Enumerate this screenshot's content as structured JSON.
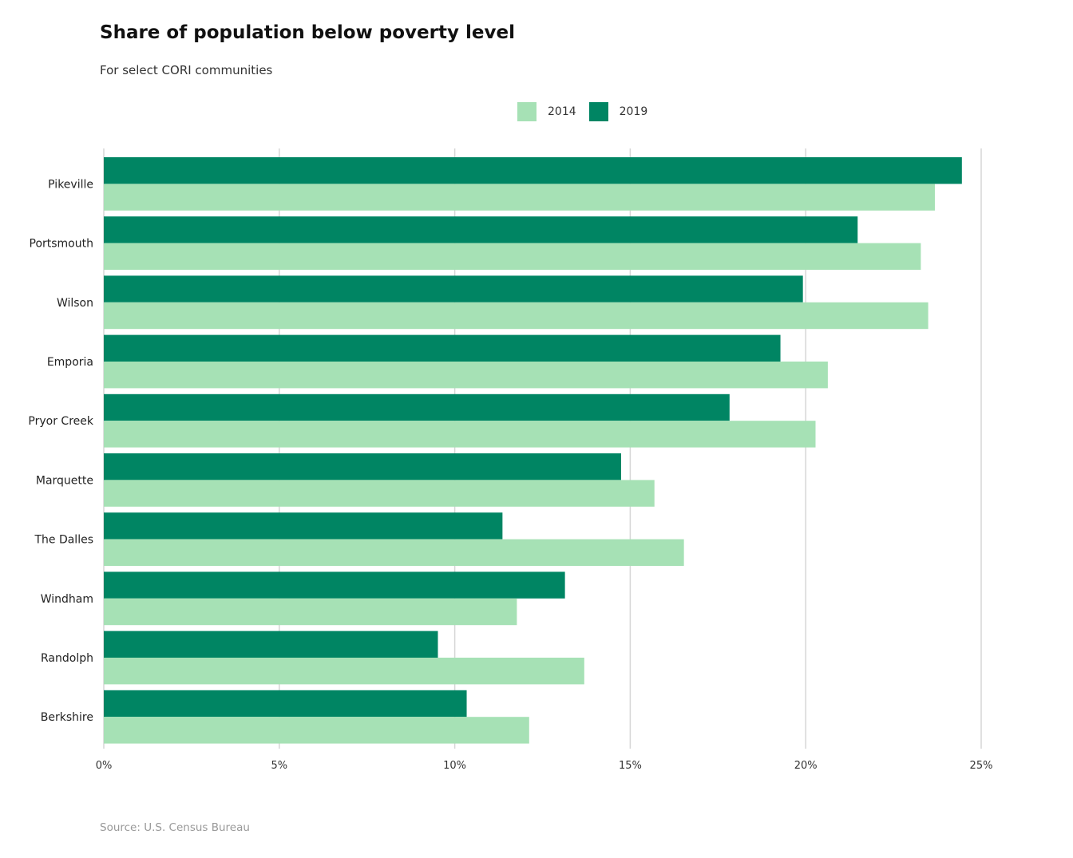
{
  "chart_data": {
    "type": "bar",
    "orientation": "horizontal",
    "title": "Share of population below poverty level",
    "subtitle": "For select CORI communities",
    "source": "Source: U.S. Census Bureau",
    "categories": [
      "Pikeville",
      "Portsmouth",
      "Wilson",
      "Emporia",
      "Pryor Creek",
      "Marquette",
      "The Dalles",
      "Windham",
      "Randolph",
      "Berkshire"
    ],
    "series": [
      {
        "name": "2019",
        "color": "#008563",
        "values": [
          24.45,
          21.48,
          19.92,
          19.28,
          17.83,
          14.74,
          11.36,
          13.14,
          9.52,
          10.34
        ]
      },
      {
        "name": "2014",
        "color": "#a6e1b5",
        "values": [
          23.68,
          23.28,
          23.49,
          20.63,
          20.28,
          15.69,
          16.53,
          11.77,
          13.69,
          12.12
        ]
      }
    ],
    "xlim": [
      0,
      25
    ],
    "x_ticks": [
      "0%",
      "5%",
      "10%",
      "15%",
      "20%",
      "25%"
    ],
    "grid": "vertical",
    "legend": [
      {
        "label": "2014",
        "color": "#a6e1b5"
      },
      {
        "label": "2019",
        "color": "#008563"
      }
    ],
    "legend_position": "top-center"
  }
}
